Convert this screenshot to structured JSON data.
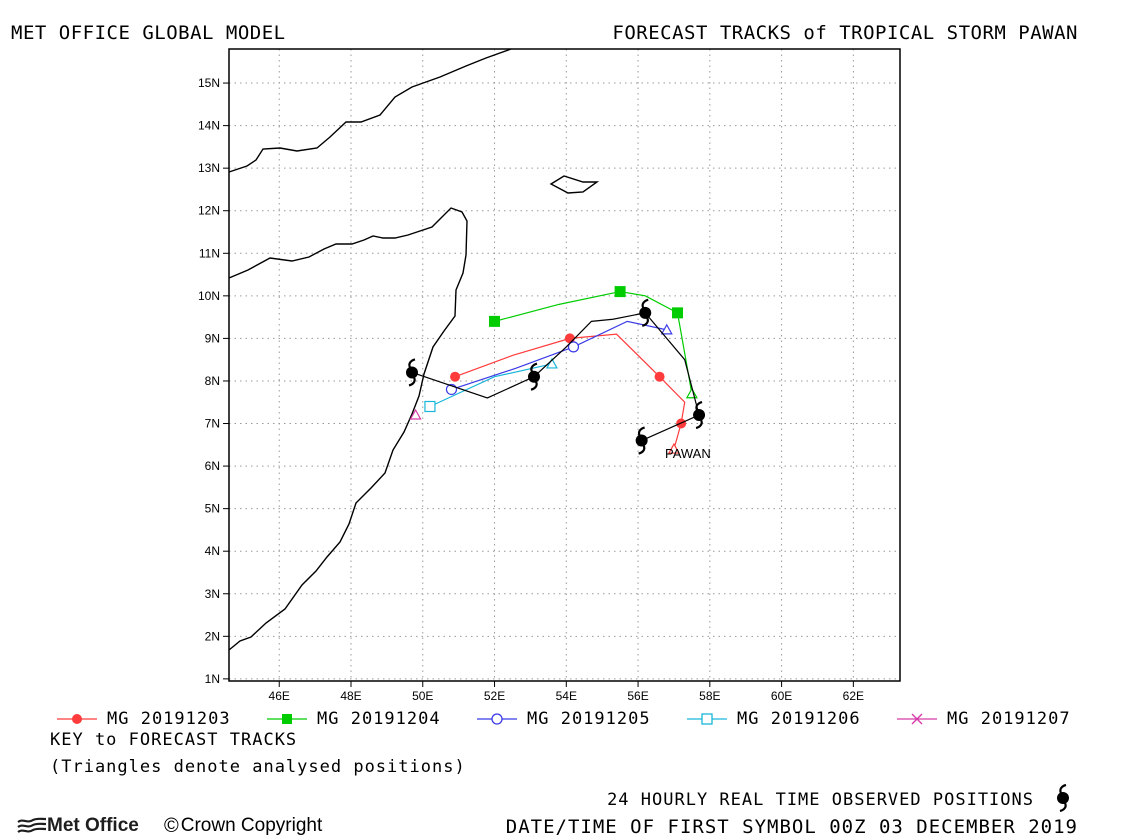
{
  "header": {
    "left": "MET OFFICE GLOBAL MODEL",
    "right": "FORECAST TRACKS of TROPICAL STORM PAWAN"
  },
  "storm_label": "PAWAN",
  "colors": {
    "MG 20191203": "#ff3b3b",
    "MG 20191204": "#00cc00",
    "MG 20191205": "#3a3ae6",
    "MG 20191206": "#19b6d9",
    "MG 20191207": "#d63aa8",
    "observed": "#000000",
    "coast": "#000000",
    "grid": "#9a9a9a"
  },
  "legend": [
    {
      "name": "MG 20191203",
      "marker": "filled-circle"
    },
    {
      "name": "MG 20191204",
      "marker": "filled-square"
    },
    {
      "name": "MG 20191205",
      "marker": "open-circle"
    },
    {
      "name": "MG 20191206",
      "marker": "open-square"
    },
    {
      "name": "MG 20191207",
      "marker": "x"
    }
  ],
  "key": {
    "title": "KEY to FORECAST TRACKS",
    "note": "(Triangles denote analysed positions)"
  },
  "observed_label": "24 HOURLY REAL TIME OBSERVED POSITIONS",
  "date_label": "DATE/TIME OF FIRST SYMBOL 00Z 03 DECEMBER 2019",
  "footer": {
    "logo_text": "Met Office",
    "copyright_symbol": "©",
    "copyright_text": "Crown Copyright"
  },
  "chart_data": {
    "type": "scatter",
    "title": "FORECAST TRACKS of TROPICAL STORM PAWAN",
    "xlabel": "",
    "ylabel": "",
    "xlim": [
      44.6,
      63.3
    ],
    "ylim": [
      0.95,
      15.8
    ],
    "x_ticks": [
      46,
      48,
      50,
      52,
      54,
      56,
      58,
      60,
      62
    ],
    "x_tick_labels": [
      "46E",
      "48E",
      "50E",
      "52E",
      "54E",
      "56E",
      "58E",
      "60E",
      "62E"
    ],
    "y_ticks": [
      1,
      2,
      3,
      4,
      5,
      6,
      7,
      8,
      9,
      10,
      11,
      12,
      13,
      14,
      15
    ],
    "y_tick_labels": [
      "1N",
      "2N",
      "3N",
      "4N",
      "5N",
      "6N",
      "7N",
      "8N",
      "9N",
      "10N",
      "11N",
      "12N",
      "13N",
      "14N",
      "15N"
    ],
    "grid": true,
    "legend": "bottom",
    "series": [
      {
        "name": "MG 20191203",
        "marker": "filled-circle",
        "analysed": [
          57.0,
          6.4
        ],
        "points": [
          [
            57.0,
            6.4
          ],
          [
            57.2,
            7.0
          ],
          [
            57.3,
            7.5
          ],
          [
            56.6,
            8.1
          ],
          [
            55.4,
            9.1
          ],
          [
            54.1,
            9.0
          ],
          [
            52.5,
            8.6
          ],
          [
            50.9,
            8.1
          ]
        ],
        "marker_every": 2
      },
      {
        "name": "MG 20191204",
        "marker": "filled-square",
        "analysed": [
          57.5,
          7.7
        ],
        "points": [
          [
            57.5,
            7.7
          ],
          [
            57.1,
            9.6
          ],
          [
            56.2,
            10.0
          ],
          [
            55.5,
            10.1
          ],
          [
            53.8,
            9.8
          ],
          [
            52.0,
            9.4
          ]
        ],
        "marker_idx": [
          1,
          3,
          5
        ]
      },
      {
        "name": "MG 20191205",
        "marker": "open-circle",
        "analysed": [
          56.8,
          9.2
        ],
        "points": [
          [
            56.8,
            9.2
          ],
          [
            55.7,
            9.4
          ],
          [
            54.2,
            8.8
          ],
          [
            52.6,
            8.3
          ],
          [
            50.8,
            7.8
          ]
        ],
        "marker_idx": [
          2,
          4
        ]
      },
      {
        "name": "MG 20191206",
        "marker": "open-square",
        "analysed": [
          53.6,
          8.4
        ],
        "points": [
          [
            53.6,
            8.4
          ],
          [
            52.0,
            8.1
          ],
          [
            50.2,
            7.4
          ]
        ],
        "marker_idx": [
          2
        ]
      },
      {
        "name": "MG 20191207",
        "marker": "x",
        "analysed": [
          49.8,
          7.2
        ],
        "points": [
          [
            49.8,
            7.2
          ]
        ],
        "marker_idx": []
      },
      {
        "name": "observed",
        "marker": "storm-symbol",
        "points": [
          [
            56.1,
            6.6
          ],
          [
            57.7,
            7.2
          ],
          [
            56.2,
            9.6
          ],
          [
            53.1,
            8.1
          ],
          [
            49.7,
            8.2
          ]
        ],
        "path": [
          [
            56.1,
            6.6
          ],
          [
            57.7,
            7.2
          ],
          [
            57.3,
            8.5
          ],
          [
            56.2,
            9.6
          ],
          [
            55.3,
            9.45
          ],
          [
            54.7,
            9.4
          ],
          [
            54.0,
            8.8
          ],
          [
            53.1,
            8.1
          ],
          [
            51.8,
            7.6
          ],
          [
            49.7,
            8.2
          ]
        ]
      }
    ]
  }
}
